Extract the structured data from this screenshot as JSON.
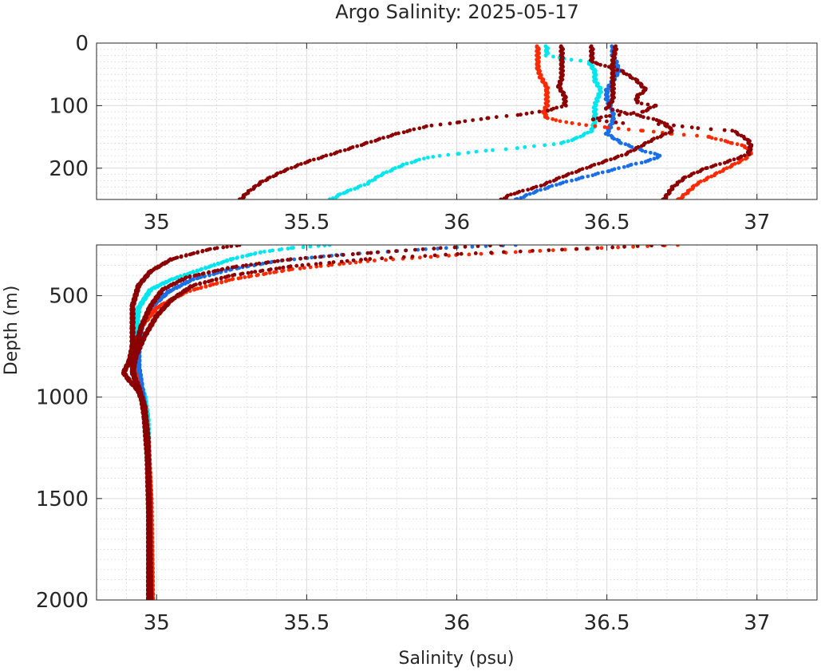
{
  "chart_data": {
    "type": "scatter",
    "title": "Argo Salinity: 2025-05-17",
    "xlabel": "Salinity (psu)",
    "ylabel": "Depth (m)",
    "xlim": [
      34.8,
      37.2
    ],
    "x_ticks": [
      35,
      35.5,
      36,
      36.5,
      37
    ],
    "x_tick_labels": [
      "35",
      "35.5",
      "36",
      "36.5",
      "37"
    ],
    "grid": true,
    "minor_grid": true,
    "y_axis_reversed": true,
    "panels": [
      {
        "name": "upper",
        "ylim": [
          0,
          250
        ],
        "y_ticks": [
          0,
          100,
          200
        ],
        "y_tick_labels": [
          "0",
          "100",
          "200"
        ]
      },
      {
        "name": "lower",
        "ylim": [
          250,
          2000
        ],
        "y_ticks": [
          500,
          1000,
          1500,
          2000
        ],
        "y_tick_labels": [
          "500",
          "1000",
          "1500",
          "2000"
        ]
      }
    ],
    "series": [
      {
        "color": "#00e5ee",
        "points": [
          [
            36.3,
            5
          ],
          [
            36.3,
            20
          ],
          [
            36.36,
            25
          ],
          [
            36.44,
            30
          ],
          [
            36.46,
            45
          ],
          [
            36.46,
            60
          ],
          [
            36.48,
            75
          ],
          [
            36.46,
            100
          ],
          [
            36.46,
            125
          ],
          [
            36.45,
            140
          ],
          [
            36.4,
            152
          ],
          [
            36.35,
            160
          ],
          [
            36.2,
            168
          ],
          [
            36.1,
            172
          ],
          [
            36.0,
            177
          ],
          [
            35.9,
            183
          ],
          [
            35.82,
            195
          ],
          [
            35.75,
            210
          ],
          [
            35.7,
            225
          ],
          [
            35.62,
            240
          ],
          [
            35.58,
            250
          ],
          [
            35.54,
            255
          ],
          [
            35.45,
            265
          ],
          [
            35.35,
            285
          ],
          [
            35.25,
            320
          ],
          [
            35.15,
            370
          ],
          [
            35.05,
            420
          ],
          [
            34.98,
            470
          ],
          [
            34.94,
            560
          ],
          [
            34.93,
            700
          ],
          [
            34.93,
            800
          ],
          [
            34.94,
            900
          ],
          [
            34.95,
            950
          ],
          [
            34.96,
            1000
          ],
          [
            34.97,
            1100
          ],
          [
            34.975,
            1400
          ],
          [
            34.975,
            1700
          ],
          [
            34.975,
            2000
          ]
        ]
      },
      {
        "color": "#1a6fe6",
        "points": [
          [
            36.52,
            5
          ],
          [
            36.52,
            20
          ],
          [
            36.53,
            30
          ],
          [
            36.54,
            45
          ],
          [
            36.52,
            60
          ],
          [
            36.5,
            75
          ],
          [
            36.5,
            90
          ],
          [
            36.52,
            110
          ],
          [
            36.52,
            125
          ],
          [
            36.5,
            145
          ],
          [
            36.55,
            160
          ],
          [
            36.62,
            172
          ],
          [
            36.68,
            180
          ],
          [
            36.64,
            188
          ],
          [
            36.58,
            195
          ],
          [
            36.5,
            205
          ],
          [
            36.42,
            215
          ],
          [
            36.34,
            225
          ],
          [
            36.26,
            238
          ],
          [
            36.2,
            250
          ],
          [
            36.0,
            262
          ],
          [
            35.8,
            280
          ],
          [
            35.6,
            300
          ],
          [
            35.4,
            330
          ],
          [
            35.25,
            370
          ],
          [
            35.12,
            420
          ],
          [
            35.04,
            480
          ],
          [
            34.98,
            560
          ],
          [
            34.95,
            650
          ],
          [
            34.94,
            750
          ],
          [
            34.94,
            850
          ],
          [
            34.95,
            950
          ],
          [
            34.96,
            1050
          ],
          [
            34.97,
            1200
          ],
          [
            34.975,
            1500
          ],
          [
            34.975,
            2000
          ]
        ]
      },
      {
        "color": "#ff2a00",
        "points": [
          [
            36.27,
            5
          ],
          [
            36.27,
            20
          ],
          [
            36.27,
            40
          ],
          [
            36.28,
            55
          ],
          [
            36.3,
            70
          ],
          [
            36.3,
            85
          ],
          [
            36.3,
            100
          ],
          [
            36.29,
            110
          ],
          [
            36.3,
            120
          ],
          [
            36.38,
            128
          ],
          [
            36.5,
            135
          ],
          [
            36.62,
            140
          ],
          [
            36.72,
            145
          ],
          [
            36.84,
            150
          ],
          [
            36.92,
            160
          ],
          [
            36.96,
            165
          ],
          [
            36.98,
            175
          ],
          [
            36.96,
            185
          ],
          [
            36.92,
            195
          ],
          [
            36.86,
            210
          ],
          [
            36.8,
            225
          ],
          [
            36.77,
            238
          ],
          [
            36.74,
            250
          ],
          [
            36.4,
            270
          ],
          [
            36.0,
            300
          ],
          [
            35.7,
            330
          ],
          [
            35.45,
            370
          ],
          [
            35.25,
            420
          ],
          [
            35.1,
            480
          ],
          [
            35.0,
            560
          ],
          [
            34.95,
            650
          ],
          [
            34.93,
            750
          ],
          [
            34.92,
            850
          ],
          [
            34.94,
            950
          ],
          [
            34.96,
            1050
          ],
          [
            34.97,
            1200
          ],
          [
            34.98,
            1500
          ],
          [
            34.985,
            2000
          ]
        ]
      },
      {
        "color": "#8b0000",
        "points": [
          [
            36.35,
            5
          ],
          [
            36.35,
            30
          ],
          [
            36.35,
            55
          ],
          [
            36.34,
            70
          ],
          [
            36.36,
            85
          ],
          [
            36.36,
            100
          ],
          [
            36.3,
            108
          ],
          [
            36.2,
            115
          ],
          [
            36.1,
            120
          ],
          [
            36.0,
            127
          ],
          [
            35.9,
            133
          ],
          [
            35.8,
            145
          ],
          [
            35.7,
            160
          ],
          [
            35.6,
            175
          ],
          [
            35.5,
            190
          ],
          [
            35.42,
            205
          ],
          [
            35.35,
            222
          ],
          [
            35.3,
            240
          ],
          [
            35.28,
            250
          ],
          [
            35.18,
            270
          ],
          [
            35.05,
            320
          ],
          [
            34.98,
            380
          ],
          [
            34.94,
            450
          ],
          [
            34.92,
            550
          ],
          [
            34.92,
            650
          ],
          [
            34.92,
            750
          ],
          [
            34.91,
            820
          ],
          [
            34.89,
            880
          ],
          [
            34.91,
            920
          ],
          [
            34.94,
            970
          ],
          [
            34.96,
            1050
          ],
          [
            34.97,
            1200
          ],
          [
            34.975,
            1500
          ],
          [
            34.975,
            2000
          ]
        ]
      },
      {
        "color": "#8b0000",
        "points": [
          [
            36.45,
            5
          ],
          [
            36.45,
            30
          ],
          [
            36.55,
            45
          ],
          [
            36.6,
            60
          ],
          [
            36.63,
            75
          ],
          [
            36.6,
            85
          ],
          [
            36.6,
            95
          ],
          [
            36.66,
            100
          ],
          [
            36.62,
            110
          ],
          [
            36.5,
            117
          ],
          [
            36.45,
            122
          ],
          [
            36.55,
            128
          ],
          [
            36.7,
            130
          ],
          [
            36.8,
            136
          ],
          [
            36.92,
            140
          ],
          [
            36.97,
            155
          ],
          [
            36.98,
            165
          ],
          [
            36.97,
            178
          ],
          [
            36.9,
            190
          ],
          [
            36.83,
            200
          ],
          [
            36.76,
            215
          ],
          [
            36.72,
            230
          ],
          [
            36.69,
            250
          ],
          [
            36.4,
            270
          ],
          [
            36.0,
            295
          ],
          [
            35.7,
            320
          ],
          [
            35.45,
            355
          ],
          [
            35.25,
            400
          ],
          [
            35.12,
            450
          ],
          [
            35.05,
            520
          ],
          [
            35.0,
            600
          ],
          [
            34.96,
            700
          ],
          [
            34.93,
            800
          ],
          [
            34.92,
            880
          ],
          [
            34.94,
            950
          ],
          [
            34.96,
            1050
          ],
          [
            34.97,
            1200
          ],
          [
            34.975,
            1500
          ],
          [
            34.98,
            2000
          ]
        ]
      },
      {
        "color": "#8b0000",
        "points": [
          [
            36.53,
            5
          ],
          [
            36.52,
            30
          ],
          [
            36.52,
            60
          ],
          [
            36.52,
            90
          ],
          [
            36.5,
            105
          ],
          [
            36.6,
            115
          ],
          [
            36.68,
            125
          ],
          [
            36.72,
            140
          ],
          [
            36.65,
            155
          ],
          [
            36.6,
            168
          ],
          [
            36.56,
            178
          ],
          [
            36.5,
            188
          ],
          [
            36.44,
            198
          ],
          [
            36.36,
            212
          ],
          [
            36.28,
            228
          ],
          [
            36.18,
            242
          ],
          [
            36.15,
            250
          ],
          [
            35.95,
            265
          ],
          [
            35.7,
            290
          ],
          [
            35.45,
            320
          ],
          [
            35.25,
            360
          ],
          [
            35.1,
            410
          ],
          [
            35.02,
            470
          ],
          [
            34.98,
            550
          ],
          [
            34.95,
            650
          ],
          [
            34.93,
            760
          ],
          [
            34.92,
            850
          ],
          [
            34.93,
            930
          ],
          [
            34.95,
            1000
          ],
          [
            34.96,
            1100
          ],
          [
            34.97,
            1300
          ],
          [
            34.975,
            1600
          ],
          [
            34.975,
            2000
          ]
        ]
      }
    ]
  }
}
